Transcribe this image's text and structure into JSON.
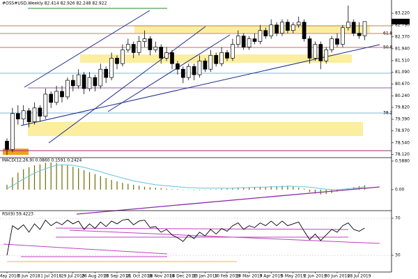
{
  "chart_data": {
    "type": "candlestick",
    "title": "#OSS#USD,Weekly  82.414 82.926 82.248 82.922",
    "categories": [
      "6 May 2018",
      null,
      null,
      null,
      "3 Jun 2018",
      null,
      null,
      null,
      "1 Jul 2018",
      null,
      null,
      null,
      "29 Jul 2018",
      null,
      null,
      null,
      "26 Aug 2018",
      null,
      null,
      null,
      "23 Sep 2018",
      null,
      null,
      null,
      "21 Oct 2018",
      null,
      null,
      null,
      "18 Nov 2018",
      null,
      null,
      null,
      "16 Dec 2018",
      null,
      null,
      null,
      "13 Jan 2019",
      null,
      null,
      null,
      "10 Feb 2019",
      null,
      null,
      null,
      "10 Mar 2019",
      null,
      null,
      null,
      "7 Apr 2019",
      null,
      null,
      null,
      "5 May 2019",
      null,
      null,
      null,
      "2 Jun 2019",
      null,
      null,
      null,
      "30 Jun 2019",
      null,
      null,
      null,
      "28 Jul 2019",
      null
    ],
    "open": [
      78.6,
      78.3,
      79.6,
      79.4,
      79.7,
      79.3,
      79.8,
      79.5,
      80.3,
      80.0,
      80.4,
      80.2,
      80.8,
      80.6,
      81.0,
      80.5,
      80.9,
      80.6,
      81.2,
      80.9,
      81.6,
      81.4,
      81.9,
      82.1,
      81.8,
      82.2,
      82.3,
      81.9,
      82.0,
      81.6,
      81.8,
      81.4,
      81.2,
      80.9,
      81.3,
      81.0,
      81.5,
      81.2,
      81.7,
      81.4,
      81.8,
      81.6,
      82.1,
      82.4,
      82.0,
      82.3,
      82.2,
      82.6,
      82.4,
      82.8,
      82.5,
      82.9,
      82.6,
      82.8,
      82.9,
      82.3,
      81.6,
      82.1,
      81.5,
      81.9,
      82.3,
      82.1,
      82.7,
      82.9,
      82.5,
      82.41
    ],
    "high": [
      78.7,
      79.8,
      79.9,
      79.9,
      79.8,
      80.0,
      79.9,
      80.5,
      80.4,
      80.6,
      80.6,
      80.9,
      81.0,
      81.2,
      81.1,
      81.1,
      81.0,
      81.4,
      81.3,
      81.8,
      81.7,
      82.1,
      82.3,
      82.2,
      82.4,
      82.6,
      82.4,
      82.2,
      82.1,
      82.0,
      81.9,
      81.5,
      81.3,
      81.4,
      81.4,
      81.7,
      81.6,
      81.9,
      81.8,
      82.0,
      81.9,
      82.3,
      82.6,
      82.5,
      82.4,
      82.5,
      82.8,
      82.7,
      83.0,
      82.9,
      83.0,
      83.0,
      82.9,
      83.1,
      83.0,
      82.4,
      82.2,
      82.2,
      82.0,
      82.4,
      82.5,
      82.8,
      83.5,
      83.0,
      82.9,
      82.926
    ],
    "low": [
      78.1,
      78.2,
      79.2,
      79.2,
      79.1,
      79.2,
      79.3,
      79.4,
      79.8,
      79.9,
      80.0,
      80.1,
      80.4,
      80.5,
      80.3,
      80.4,
      80.4,
      80.5,
      80.7,
      80.8,
      81.2,
      81.3,
      81.8,
      81.6,
      81.7,
      82.0,
      81.7,
      81.8,
      81.4,
      81.5,
      81.2,
      81.0,
      80.7,
      80.8,
      80.8,
      80.9,
      81.1,
      81.1,
      81.3,
      81.3,
      81.5,
      81.5,
      82.0,
      81.9,
      81.9,
      82.1,
      82.1,
      82.3,
      82.3,
      82.4,
      82.4,
      82.5,
      82.5,
      82.7,
      82.2,
      81.4,
      81.5,
      81.2,
      81.4,
      81.8,
      82.0,
      82.0,
      82.6,
      82.4,
      82.3,
      82.248
    ],
    "close": [
      78.3,
      79.6,
      79.4,
      79.7,
      79.3,
      79.8,
      79.5,
      80.3,
      80.0,
      80.4,
      80.2,
      80.8,
      80.6,
      81.0,
      80.5,
      80.9,
      80.6,
      81.2,
      80.9,
      81.6,
      81.4,
      81.9,
      82.1,
      81.8,
      82.2,
      82.3,
      81.9,
      82.0,
      81.6,
      81.8,
      81.4,
      81.2,
      80.9,
      81.3,
      81.0,
      81.5,
      81.2,
      81.7,
      81.4,
      81.8,
      81.6,
      82.1,
      82.4,
      82.0,
      82.3,
      82.2,
      82.6,
      82.4,
      82.8,
      82.5,
      82.9,
      82.6,
      82.8,
      82.9,
      82.3,
      81.6,
      82.1,
      81.5,
      81.9,
      82.3,
      82.1,
      82.7,
      82.9,
      82.5,
      82.41,
      82.922
    ],
    "up_color": "#ffffff",
    "down_color": "#000000",
    "ylim": [
      78.03,
      83.6
    ],
    "yticks": [
      {
        "value": 83.22,
        "label": "83.220"
      },
      {
        "value": 82.79,
        "label": "82.790"
      },
      {
        "value": 82.37,
        "label": "82.370"
      },
      {
        "value": 81.94,
        "label": "81.940"
      },
      {
        "value": 81.51,
        "label": "81.510"
      },
      {
        "value": 81.09,
        "label": "81.090"
      },
      {
        "value": 80.67,
        "label": "80.670"
      },
      {
        "value": 80.24,
        "label": "80.240"
      },
      {
        "value": 79.82,
        "label": "79.820"
      },
      {
        "value": 79.39,
        "label": "79.390"
      },
      {
        "value": 78.97,
        "label": "78.970"
      },
      {
        "value": 78.54,
        "label": "78.540"
      },
      {
        "value": 78.12,
        "label": "78.120"
      }
    ],
    "last_price": 82.922,
    "fib_labels": [
      "61.8",
      "50.0",
      "38.2"
    ],
    "macd": {
      "label": "MACD(12,26,9) 0.0860 0.1591 0.2424",
      "histogram": [
        0.1,
        0.25,
        0.35,
        0.42,
        0.46,
        0.5,
        0.52,
        0.55,
        0.56,
        0.55,
        0.52,
        0.5,
        0.47,
        0.44,
        0.4,
        0.36,
        0.32,
        0.28,
        0.24,
        0.2,
        0.17,
        0.14,
        0.12,
        0.1,
        0.08,
        0.06,
        0.05,
        0.04,
        0.03,
        0.02,
        0.01,
        0.01,
        0.0,
        0.0,
        -0.01,
        -0.01,
        0.0,
        0.01,
        0.01,
        0.02,
        0.02,
        0.03,
        0.04,
        0.04,
        0.05,
        0.05,
        0.06,
        0.06,
        0.07,
        0.07,
        0.08,
        0.08,
        0.06,
        0.04,
        0.02,
        -0.05,
        -0.08,
        -0.1,
        -0.09,
        -0.07,
        -0.04,
        -0.02,
        0.02,
        0.05,
        0.07,
        0.09
      ],
      "signal": [
        0.02,
        0.08,
        0.15,
        0.22,
        0.28,
        0.34,
        0.39,
        0.43,
        0.47,
        0.5,
        0.51,
        0.51,
        0.5,
        0.48,
        0.46,
        0.43,
        0.4,
        0.37,
        0.33,
        0.3,
        0.27,
        0.24,
        0.21,
        0.18,
        0.16,
        0.14,
        0.12,
        0.1,
        0.09,
        0.08,
        0.07,
        0.06,
        0.05,
        0.04,
        0.04,
        0.03,
        0.03,
        0.03,
        0.03,
        0.03,
        0.03,
        0.03,
        0.04,
        0.04,
        0.04,
        0.05,
        0.05,
        0.05,
        0.06,
        0.06,
        0.06,
        0.07,
        0.07,
        0.06,
        0.06,
        0.05,
        0.04,
        0.02,
        0.01,
        0.0,
        0.0,
        0.01,
        0.02,
        0.03,
        0.04,
        0.06
      ],
      "hist_color": "#6b6b00",
      "signal_color": "#66c2dd",
      "ylim": [
        -0.26,
        0.63
      ],
      "yticks": [
        {
          "value": 0.588,
          "label": "0.5880"
        },
        {
          "value": 0,
          "label": "0.00"
        }
      ]
    },
    "rsi": {
      "label": "RSI(9) 59.4223",
      "values": [
        30,
        62,
        58,
        63,
        55,
        64,
        58,
        68,
        62,
        66,
        63,
        68,
        64,
        67,
        58,
        64,
        59,
        66,
        61,
        67,
        64,
        68,
        69,
        63,
        67,
        68,
        60,
        61,
        55,
        58,
        52,
        49,
        45,
        52,
        48,
        55,
        51,
        58,
        53,
        59,
        56,
        62,
        65,
        58,
        62,
        60,
        65,
        62,
        67,
        62,
        67,
        62,
        64,
        66,
        56,
        47,
        53,
        46,
        52,
        58,
        55,
        62,
        65,
        58,
        56,
        59.42
      ],
      "color": "#000000",
      "ylim": [
        12,
        77.5
      ],
      "yticks": [
        70,
        30
      ]
    }
  }
}
